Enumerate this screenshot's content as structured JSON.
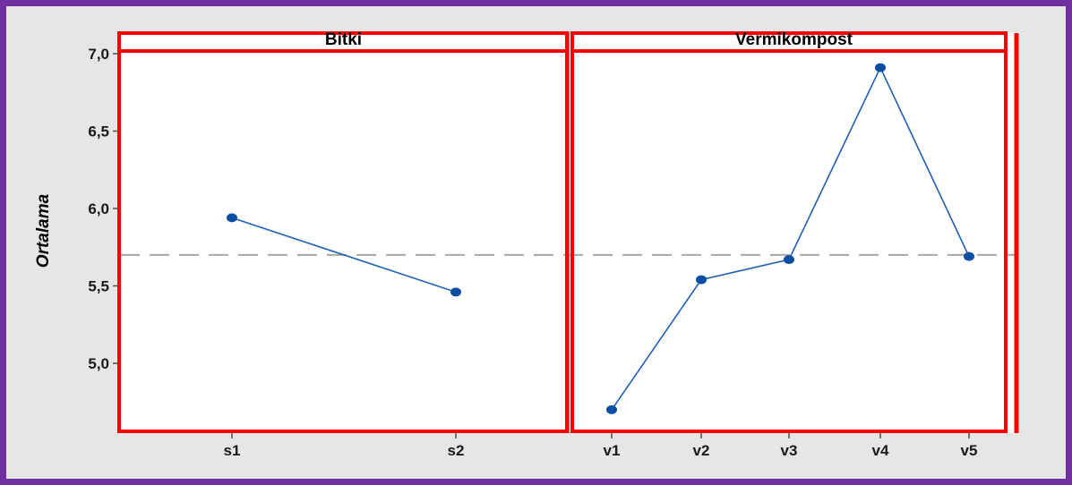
{
  "chart_data": {
    "type": "line",
    "ylabel": "Ortalama",
    "ylim": [
      4.7,
      7.15
    ],
    "yticks": [
      "5,0",
      "5,5",
      "6,0",
      "6,5",
      "7,0"
    ],
    "ytick_values": [
      5.0,
      5.5,
      6.0,
      6.5,
      7.0
    ],
    "reference_line": 5.7,
    "panels": [
      {
        "title": "Bitki",
        "categories": [
          "s1",
          "s2"
        ],
        "values": [
          5.94,
          5.46
        ]
      },
      {
        "title": "Vermikompost",
        "categories": [
          "v1",
          "v2",
          "v3",
          "v4",
          "v5"
        ],
        "values": [
          4.7,
          5.54,
          5.67,
          6.91,
          5.69
        ]
      }
    ]
  },
  "colors": {
    "frame_border": "#7030a0",
    "frame_background": "#e6e6e6",
    "plot_background": "#ffffff",
    "panel_outline": "#ff0000",
    "series": "#1f5fb4",
    "marker": "#0b4ea2",
    "reference_line": "#a6a6a6"
  }
}
